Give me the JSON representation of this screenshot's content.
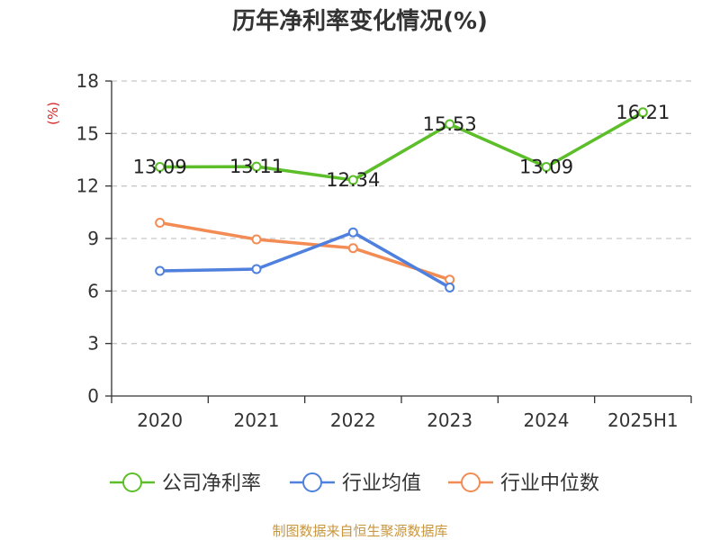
{
  "chart_data": {
    "type": "line",
    "title": "历年净利率变化情况(%)",
    "ylabel": "(%)",
    "categories": [
      "2020",
      "2021",
      "2022",
      "2023",
      "2024",
      "2025H1"
    ],
    "ylim": [
      0,
      18
    ],
    "yticks": [
      "0",
      "3",
      "6",
      "9",
      "12",
      "15",
      "18"
    ],
    "grid": true,
    "legend_position": "bottom",
    "series": [
      {
        "name": "公司净利率",
        "color": "#5cbf2a",
        "values": [
          13.09,
          13.11,
          12.34,
          15.53,
          13.09,
          16.21
        ],
        "labels": [
          "13.09",
          "13.11",
          "12.34",
          "15.53",
          "13.09",
          "16.21"
        ]
      },
      {
        "name": "行业均值",
        "color": "#4f80dd",
        "values": [
          7.15,
          7.25,
          9.35,
          6.2,
          null,
          null
        ]
      },
      {
        "name": "行业中位数",
        "color": "#f28c54",
        "values": [
          9.9,
          8.95,
          8.45,
          6.65,
          null,
          null
        ]
      }
    ],
    "source": "制图数据来自恒生聚源数据库",
    "colors": {
      "ylabel": "#d62728",
      "source": "#c8963e",
      "grid": "#c8c8c8",
      "axis": "#333333"
    }
  }
}
